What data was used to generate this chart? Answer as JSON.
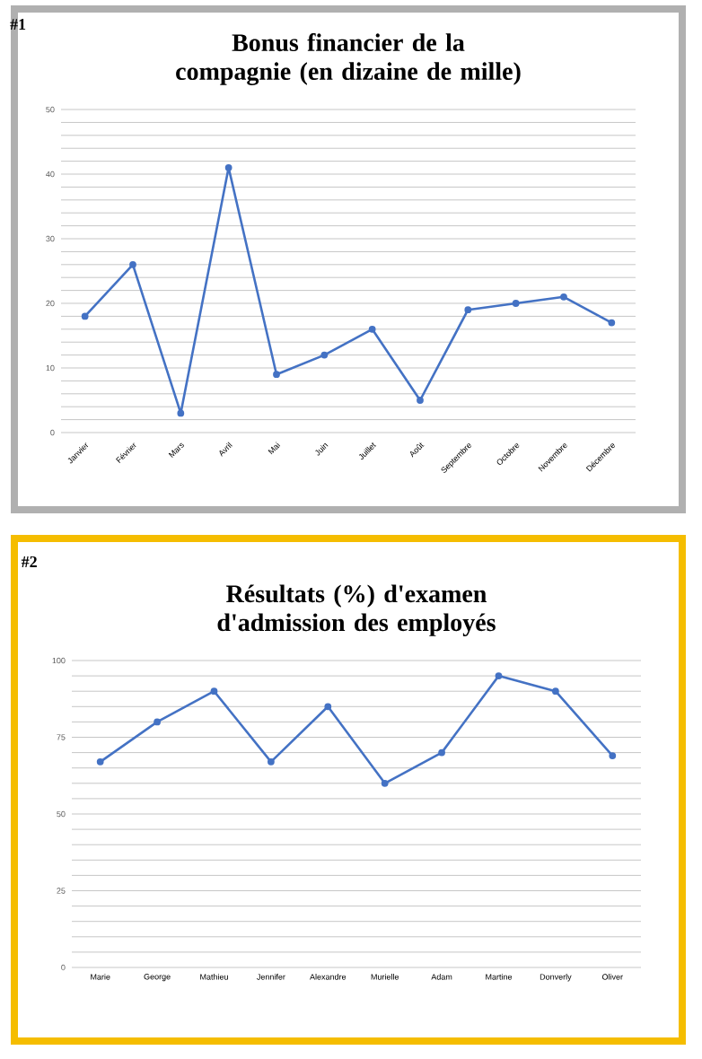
{
  "chart_data": [
    {
      "type": "line",
      "title": "Bonus financier de la compagnie (en dizaine de mille)",
      "annotations": [
        "#1"
      ],
      "categories": [
        "Janvier",
        "Février",
        "Mars",
        "Avril",
        "Mai",
        "Juin",
        "Juillet",
        "Août",
        "Septembre",
        "Octobre",
        "Novembre",
        "Décembre"
      ],
      "values": [
        18,
        26,
        3,
        41,
        9,
        12,
        16,
        5,
        19,
        20,
        21,
        17
      ],
      "color": "#4472c4",
      "ylim": [
        0,
        50
      ],
      "yticks": [
        0,
        {
          "value": 2,
          "label": null
        },
        {
          "value": 4,
          "label": null
        },
        {
          "value": 6,
          "label": null
        },
        {
          "value": 8,
          "label": null
        },
        10,
        {
          "value": 12,
          "label": null
        },
        {
          "value": 14,
          "label": null
        },
        {
          "value": 16,
          "label": null
        },
        {
          "value": 18,
          "label": null
        },
        20,
        {
          "value": 22,
          "label": null
        },
        {
          "value": 24,
          "label": null
        },
        {
          "value": 26,
          "label": null
        },
        {
          "value": 28,
          "label": null
        },
        30,
        {
          "value": 32,
          "label": null
        },
        {
          "value": 34,
          "label": null
        },
        {
          "value": 36,
          "label": null
        },
        {
          "value": 38,
          "label": null
        },
        40,
        {
          "value": 42,
          "label": null
        },
        {
          "value": 44,
          "label": null
        },
        {
          "value": 46,
          "label": null
        },
        {
          "value": 48,
          "label": null
        },
        50
      ],
      "grid": "y",
      "marker": "circle",
      "line_style": "solid"
    },
    {
      "type": "line",
      "title": "Résultats (%) d'examen d'admission des employés",
      "annotations": [
        "#2"
      ],
      "categories": [
        "Marie",
        "George",
        "Mathieu",
        "Jennifer",
        "Alexandre",
        "Murielle",
        "Adam",
        "Martine",
        "Donverly",
        "Oliver"
      ],
      "values": [
        67,
        80,
        90,
        67,
        85,
        60,
        70,
        95,
        90,
        69
      ],
      "color": "#4472c4",
      "ylim": [
        0,
        100
      ],
      "yticks": [
        0,
        {
          "value": 5,
          "label": null
        },
        {
          "value": 10,
          "label": null
        },
        {
          "value": 15,
          "label": null
        },
        {
          "value": 20,
          "label": null
        },
        25,
        {
          "value": 30,
          "label": null
        },
        {
          "value": 35,
          "label": null
        },
        {
          "value": 40,
          "label": null
        },
        {
          "value": 45,
          "label": null
        },
        50,
        {
          "value": 55,
          "label": null
        },
        {
          "value": 60,
          "label": null
        },
        {
          "value": 65,
          "label": null
        },
        {
          "value": 70,
          "label": null
        },
        75,
        {
          "value": 80,
          "label": null
        },
        {
          "value": 85,
          "label": null
        },
        {
          "value": 90,
          "label": null
        },
        {
          "value": 95,
          "label": null
        },
        100
      ],
      "grid": "y",
      "marker": "circle",
      "line_style": "solid"
    }
  ]
}
